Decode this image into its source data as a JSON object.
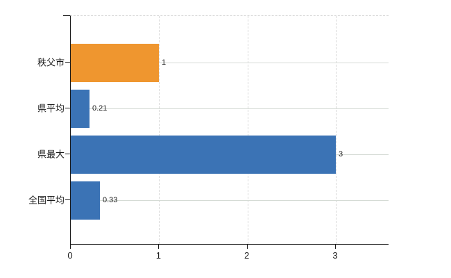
{
  "chart_data": {
    "type": "bar",
    "orientation": "horizontal",
    "title": "",
    "xlabel": "",
    "ylabel": "",
    "categories": [
      "秩父市",
      "県平均",
      "県最大",
      "全国平均"
    ],
    "values": [
      1,
      0.21,
      3,
      0.33
    ],
    "value_labels": [
      "1",
      "0.21",
      "3",
      "0.33"
    ],
    "bar_colors": [
      "#ef962f",
      "#3b73b5",
      "#3b73b5",
      "#3b73b5"
    ],
    "x_ticks": [
      0,
      1,
      2,
      3
    ],
    "x_tick_labels": [
      "0",
      "1",
      "2",
      "3"
    ],
    "xlim": [
      0,
      3.61
    ],
    "grid": true,
    "gridline_color": "#d9d9d9",
    "axis_color": "#1a1a1a",
    "legend": "none",
    "background_color": "#ffffff"
  },
  "colors": {
    "bar_blue": "#3b73b5",
    "bar_orange": "#ef962f",
    "grid": "#d9d9d9",
    "axis": "#1a1a1a",
    "text": "#1a1a1a"
  }
}
